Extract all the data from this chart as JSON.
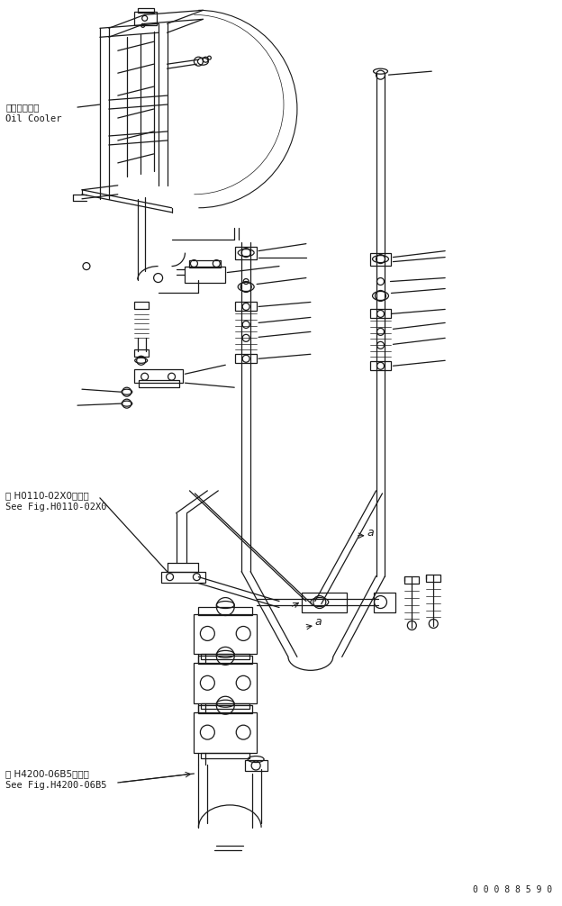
{
  "background_color": "#ffffff",
  "figure_width": 6.24,
  "figure_height": 10.06,
  "dpi": 100,
  "label_oilcooler_jp": "オイルクーラ",
  "label_oilcooler_en": "Oil Cooler",
  "label_fig1_jp": "第 H0110-02X0図参照",
  "label_fig1_en": "See Fig.H0110-02X0",
  "label_fig2_jp": "第 H4200-06B5図参照",
  "label_fig2_en": "See Fig.H4200-06B5",
  "label_serial": "0 0 0 8 8 5 9 0",
  "line_color": "#1a1a1a",
  "line_width": 0.9
}
